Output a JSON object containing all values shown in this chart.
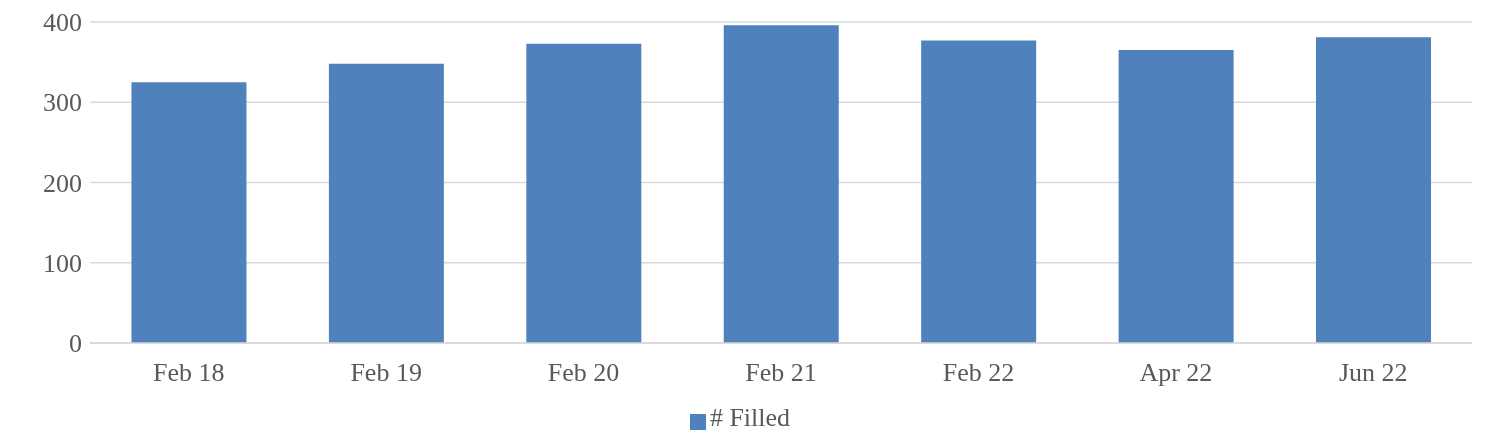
{
  "chart_data": {
    "type": "bar",
    "categories": [
      "Feb 18",
      "Feb 19",
      "Feb 20",
      "Feb 21",
      "Feb 22",
      "Apr 22",
      "Jun 22"
    ],
    "series": [
      {
        "name": "# Filled",
        "color": "#4f81bd",
        "values": [
          325,
          348,
          373,
          396,
          377,
          365,
          381
        ]
      }
    ],
    "ylim": [
      0,
      400
    ],
    "yticks": [
      0,
      100,
      200,
      300,
      400
    ],
    "grid": "y",
    "legend": "bottom"
  }
}
